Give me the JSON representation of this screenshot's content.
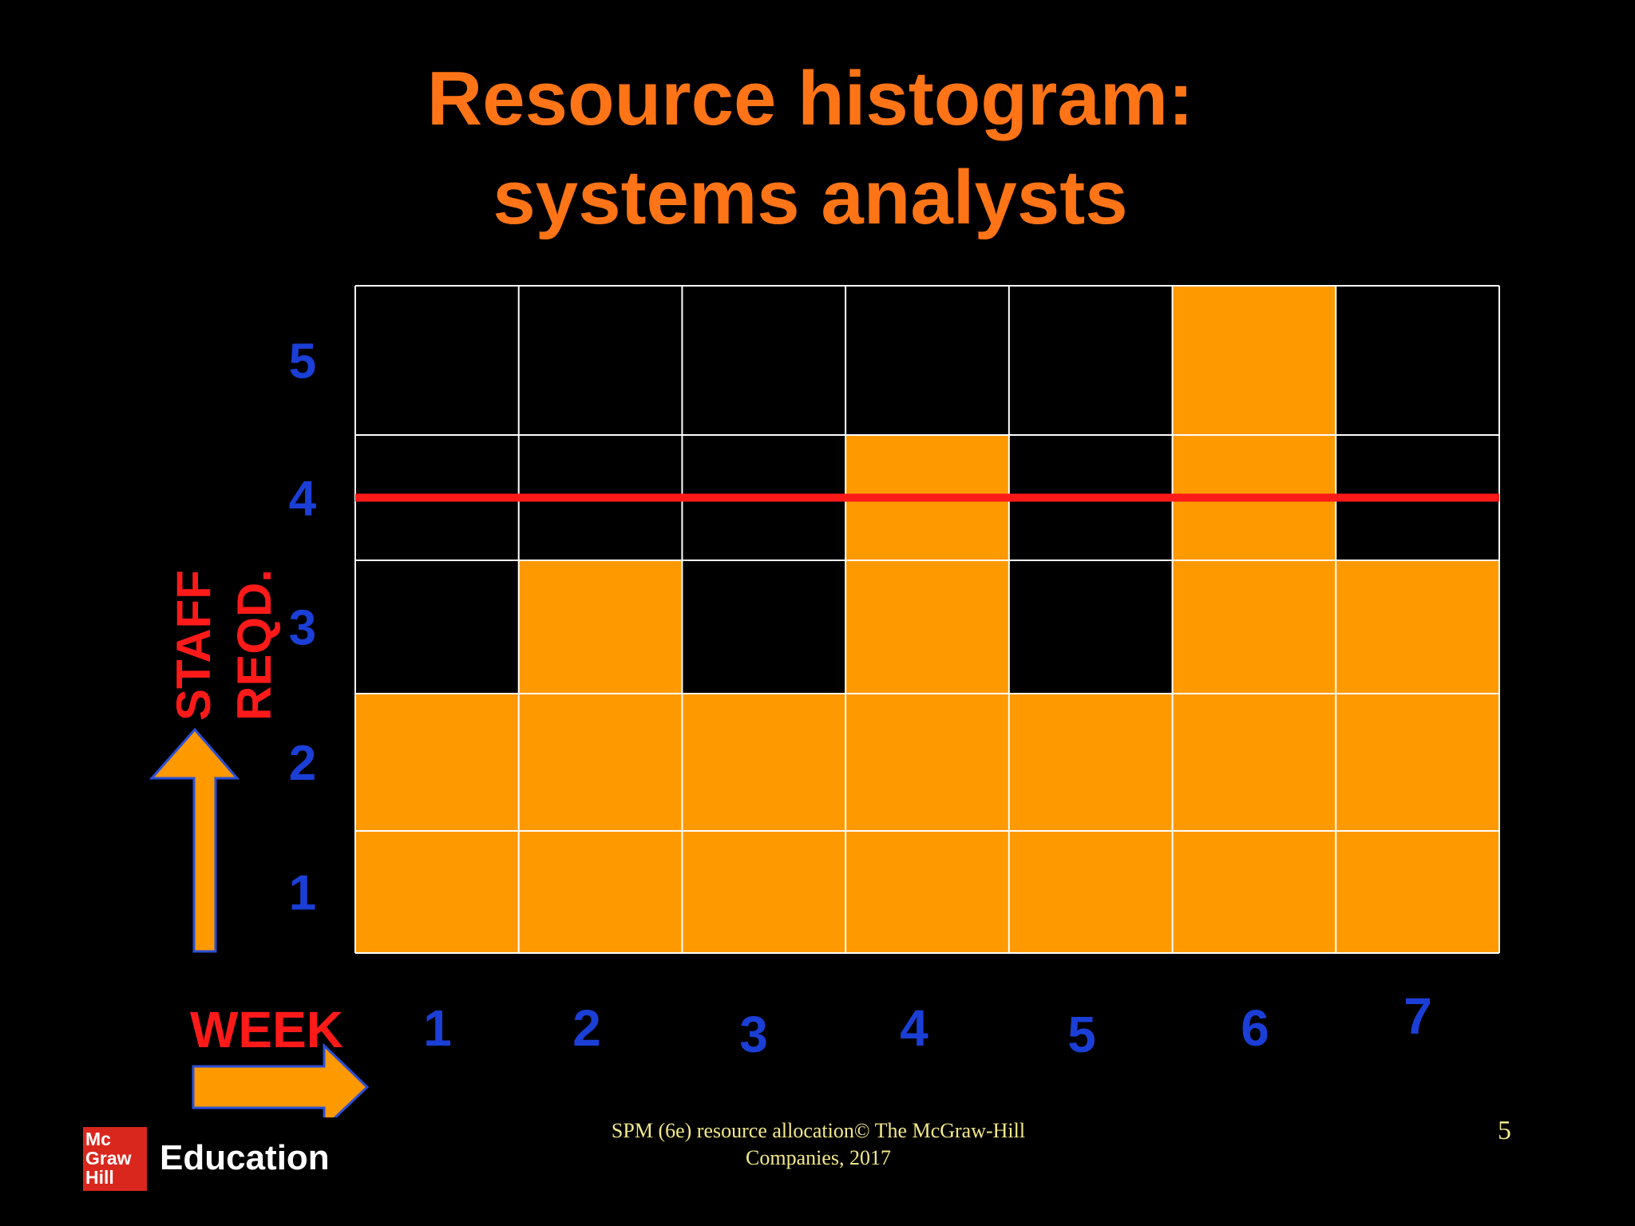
{
  "slide": {
    "title_line1": "Resource histogram:",
    "title_line2": "systems analysts",
    "footer_line1": "SPM (6e)  resource allocation© The McGraw-Hill",
    "footer_line2": "Companies, 2017",
    "page_number": "5"
  },
  "logo": {
    "box_line1": "Mc",
    "box_line2": "Graw",
    "box_line3": "Hill",
    "word": "Education"
  },
  "colors": {
    "background": "#000000",
    "bar": "#ff9900",
    "grid": "#ffffff",
    "limit_line": "#ff1a1a",
    "tick_labels": "#1b3fd6",
    "axis_labels": "#ff1a1a",
    "title": "#ff7416",
    "arrows": "#ff9900"
  },
  "icons": {
    "y_arrow": "up-arrow-icon",
    "x_arrow": "right-arrow-icon"
  },
  "chart_data": {
    "type": "bar",
    "title": "Resource histogram: systems analysts",
    "xlabel": "WEEK",
    "ylabel_line1": "STAFF",
    "ylabel_line2": "REQD.",
    "categories": [
      "1",
      "2",
      "3",
      "4",
      "5",
      "6",
      "7"
    ],
    "values": [
      2,
      3,
      2,
      4,
      2,
      5,
      3
    ],
    "y_ticks": [
      "1",
      "2",
      "3",
      "4",
      "5"
    ],
    "ylim": [
      0,
      5
    ],
    "limit_value": 3.5,
    "grid": true,
    "legend": "none"
  }
}
